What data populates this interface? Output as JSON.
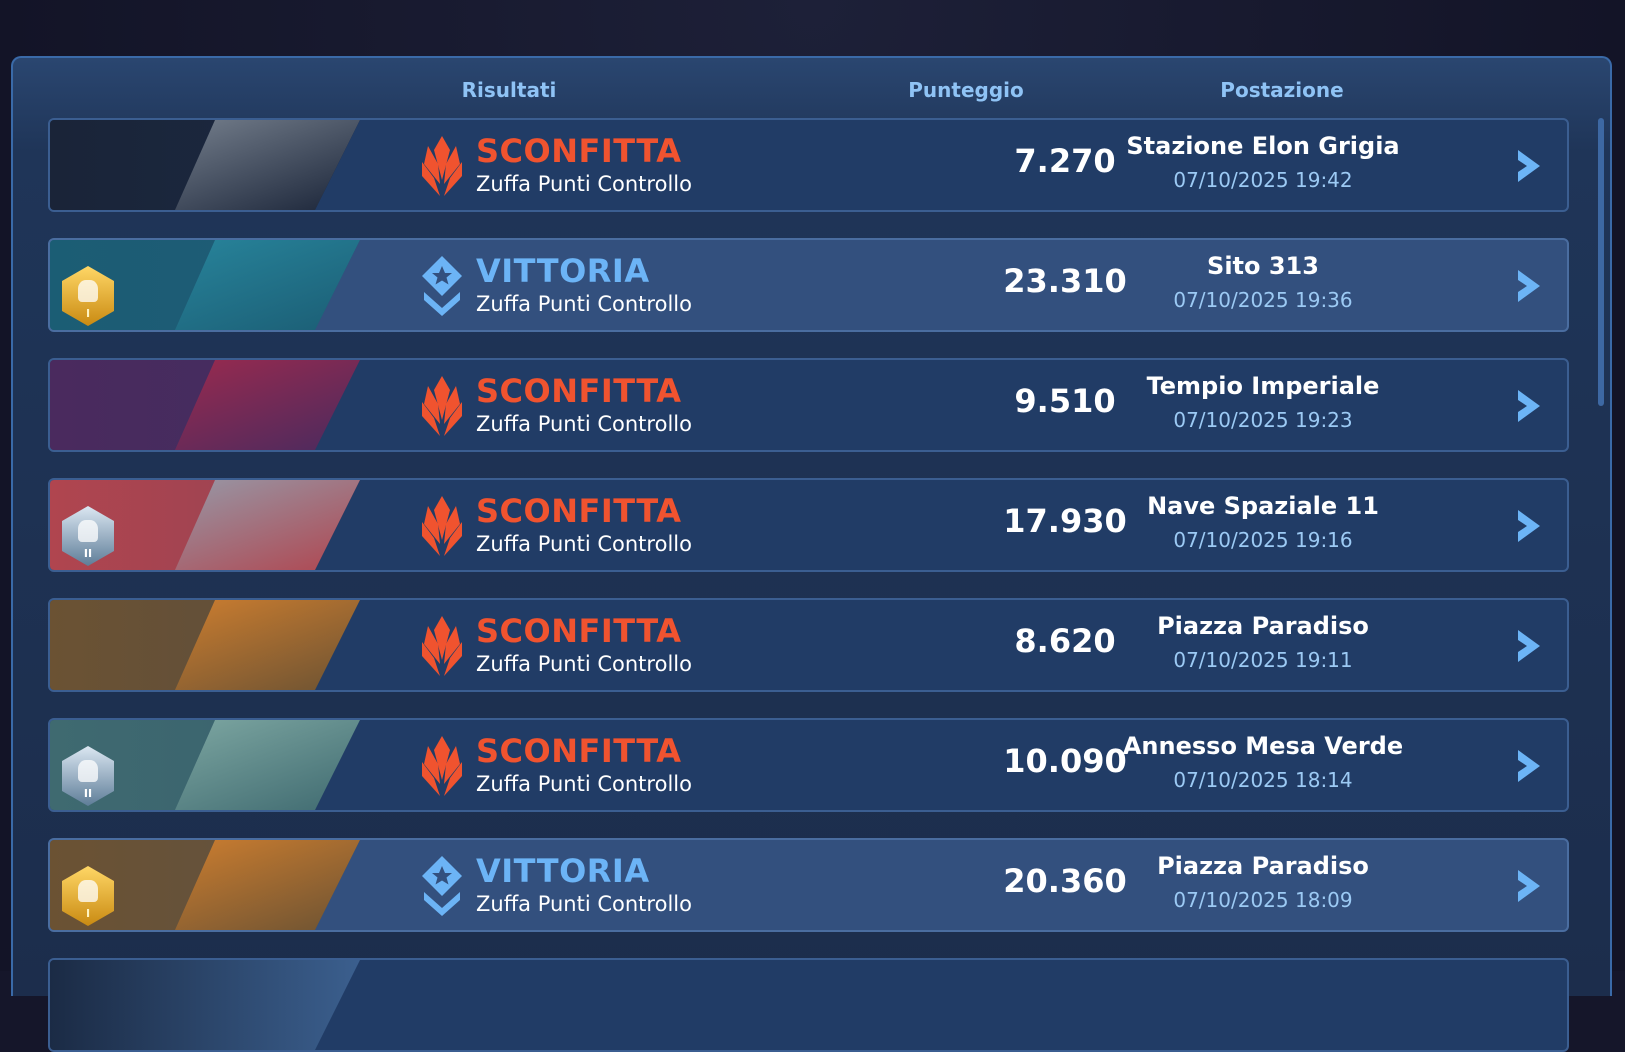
{
  "header": {
    "results": "Risultati",
    "score": "Punteggio",
    "location": "Postazione"
  },
  "colors": {
    "defeat": "#f0532f",
    "victory": "#6cb4f6",
    "date": "#9ccaf4",
    "header": "#8fc3f5"
  },
  "matches": [
    {
      "result": "SCONFITTA",
      "outcome": "defeat",
      "mode": "Zuffa Punti Controllo",
      "score": "7.270",
      "location": "Stazione Elon Grigia",
      "date": "07/10/2025 19:42",
      "rank_badge": null
    },
    {
      "result": "VITTORIA",
      "outcome": "victory",
      "mode": "Zuffa Punti Controllo",
      "score": "23.310",
      "location": "Sito 313",
      "date": "07/10/2025 19:36",
      "rank_badge": {
        "tier": "gold",
        "level": "I"
      }
    },
    {
      "result": "SCONFITTA",
      "outcome": "defeat",
      "mode": "Zuffa Punti Controllo",
      "score": "9.510",
      "location": "Tempio Imperiale",
      "date": "07/10/2025 19:23",
      "rank_badge": null
    },
    {
      "result": "SCONFITTA",
      "outcome": "defeat",
      "mode": "Zuffa Punti Controllo",
      "score": "17.930",
      "location": "Nave Spaziale 11",
      "date": "07/10/2025 19:16",
      "rank_badge": {
        "tier": "silver",
        "level": "II"
      }
    },
    {
      "result": "SCONFITTA",
      "outcome": "defeat",
      "mode": "Zuffa Punti Controllo",
      "score": "8.620",
      "location": "Piazza Paradiso",
      "date": "07/10/2025 19:11",
      "rank_badge": null
    },
    {
      "result": "SCONFITTA",
      "outcome": "defeat",
      "mode": "Zuffa Punti Controllo",
      "score": "10.090",
      "location": "Annesso Mesa Verde",
      "date": "07/10/2025 18:14",
      "rank_badge": {
        "tier": "silver",
        "level": "II"
      }
    },
    {
      "result": "VITTORIA",
      "outcome": "victory",
      "mode": "Zuffa Punti Controllo",
      "score": "20.360",
      "location": "Piazza Paradiso",
      "date": "07/10/2025 18:09",
      "rank_badge": {
        "tier": "gold",
        "level": "I"
      }
    }
  ]
}
